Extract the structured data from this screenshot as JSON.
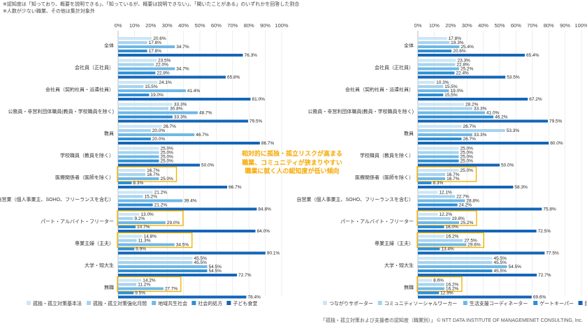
{
  "notes": {
    "line1": "※認知度は「知っており、概要を説明できる」、「知っているが、概要は説明できない」、「聞いたことがある」のいずれかを回答した割合",
    "line2": "※人数が少ない職業、その他は集計対象外"
  },
  "callout": {
    "line1": "相対的に孤独・孤立リスクが高まる",
    "line2": "職業、コミュニティが狭まりやすい",
    "line3": "職業に就く人の認知度が低い傾向"
  },
  "footer": "「孤独・孤立対策および支援者の認知度（職業別）」 © NTT DATA INSTITUTE OF MANAGEMENET CONSULTING, Inc.",
  "colors": [
    "#cde6f5",
    "#a6d3ef",
    "#6fb8e6",
    "#2f8fd4",
    "#1466b8"
  ],
  "highlight_color": "#f5b400",
  "chart_data": [
    {
      "type": "bar",
      "orientation": "horizontal",
      "categories": [
        "全体",
        "会社員（正社員）",
        "会社員（契約社員・派遣社員）",
        "公務員・非営利団体職員(教員・学校職員を除く)",
        "教員",
        "学校職員（教員を除く）",
        "医療関係者（医師を除く）",
        "自営業（個人事業主、SOHO、フリーランスを含む）",
        "パート・アルバイト・フリーター",
        "専業主婦（主夫）",
        "大学・短大生",
        "無職"
      ],
      "x_ticks": [
        "0%",
        "10%",
        "20%",
        "30%",
        "40%",
        "50%",
        "60%",
        "70%",
        "80%",
        "90%",
        "100%"
      ],
      "xlim": [
        0,
        100
      ],
      "highlighted_categories": [
        "医療関係者（医師を除く）",
        "パート・アルバイト・フリーター",
        "専業主婦（主夫）",
        "無職"
      ],
      "series": [
        {
          "name": "孤独・孤立対策基本法",
          "values": [
            20.6,
            23.5,
            24.1,
            33.3,
            26.7,
            25.0,
            16.7,
            21.2,
            13.0,
            14.8,
            45.5,
            14.2
          ]
        },
        {
          "name": "孤独・孤立対策強化月間",
          "values": [
            17.8,
            22.0,
            15.5,
            30.8,
            20.0,
            25.0,
            16.7,
            15.2,
            9.2,
            11.3,
            45.5,
            11.2
          ]
        },
        {
          "name": "地域共生社会",
          "values": [
            34.7,
            34.7,
            41.4,
            48.7,
            46.7,
            25.0,
            25.0,
            39.4,
            29.0,
            34.5,
            54.5,
            27.7
          ]
        },
        {
          "name": "社会的処方",
          "values": [
            17.8,
            22.8,
            19.0,
            33.3,
            20.0,
            25.0,
            8.3,
            21.2,
            10.7,
            9.9,
            54.5,
            9.5
          ]
        },
        {
          "name": "子ども食堂",
          "values": [
            76.3,
            65.8,
            81.0,
            79.5,
            86.7,
            50.0,
            66.7,
            84.8,
            84.0,
            90.1,
            72.7,
            78.4
          ]
        }
      ]
    },
    {
      "type": "bar",
      "orientation": "horizontal",
      "categories": [
        "全体",
        "会社員（正社員）",
        "会社員（契約社員・派遣社員）",
        "公務員・非営利団体職員(教員・学校職員を除く)",
        "教員",
        "学校職員（教員を除く）",
        "医療関係者（医師を除く）",
        "自営業（個人事業主、SOHO、フリーランスを含む）",
        "パート・アルバイト・フリーター",
        "専業主婦（主夫）",
        "大学・短大生",
        "無職"
      ],
      "x_ticks": [
        "0%",
        "10%",
        "20%",
        "30%",
        "40%",
        "50%",
        "60%",
        "70%",
        "80%",
        "90%",
        "100%"
      ],
      "xlim": [
        0,
        100
      ],
      "highlighted_categories": [
        "医療関係者（医師を除く）",
        "パート・アルバイト・フリーター",
        "専業主婦（主夫）",
        "無職"
      ],
      "series": [
        {
          "name": "つながりサポーター",
          "values": [
            17.8,
            23.3,
            10.3,
            28.2,
            26.7,
            25.0,
            25.0,
            12.1,
            12.2,
            16.2,
            45.5,
            8.6
          ]
        },
        {
          "name": "コミュニティソーシャルワーカー",
          "values": [
            19.3,
            22.8,
            15.5,
            33.3,
            53.3,
            25.0,
            16.7,
            22.7,
            19.8,
            27.5,
            45.5,
            16.2
          ]
        },
        {
          "name": "生活支援コーディネーター",
          "values": [
            25.4,
            25.2,
            19.0,
            41.0,
            33.3,
            25.0,
            16.7,
            28.8,
            25.2,
            29.6,
            54.5,
            16.2
          ]
        },
        {
          "name": "ゲートキーパー",
          "values": [
            20.6,
            22.4,
            15.5,
            46.2,
            26.7,
            25.0,
            8.3,
            24.2,
            16.0,
            13.4,
            45.5,
            12.9
          ]
        },
        {
          "name": "民生委員",
          "values": [
            65.4,
            53.5,
            67.2,
            79.5,
            80.0,
            50.0,
            58.3,
            75.8,
            72.5,
            77.5,
            72.7,
            69.6
          ]
        }
      ]
    }
  ]
}
